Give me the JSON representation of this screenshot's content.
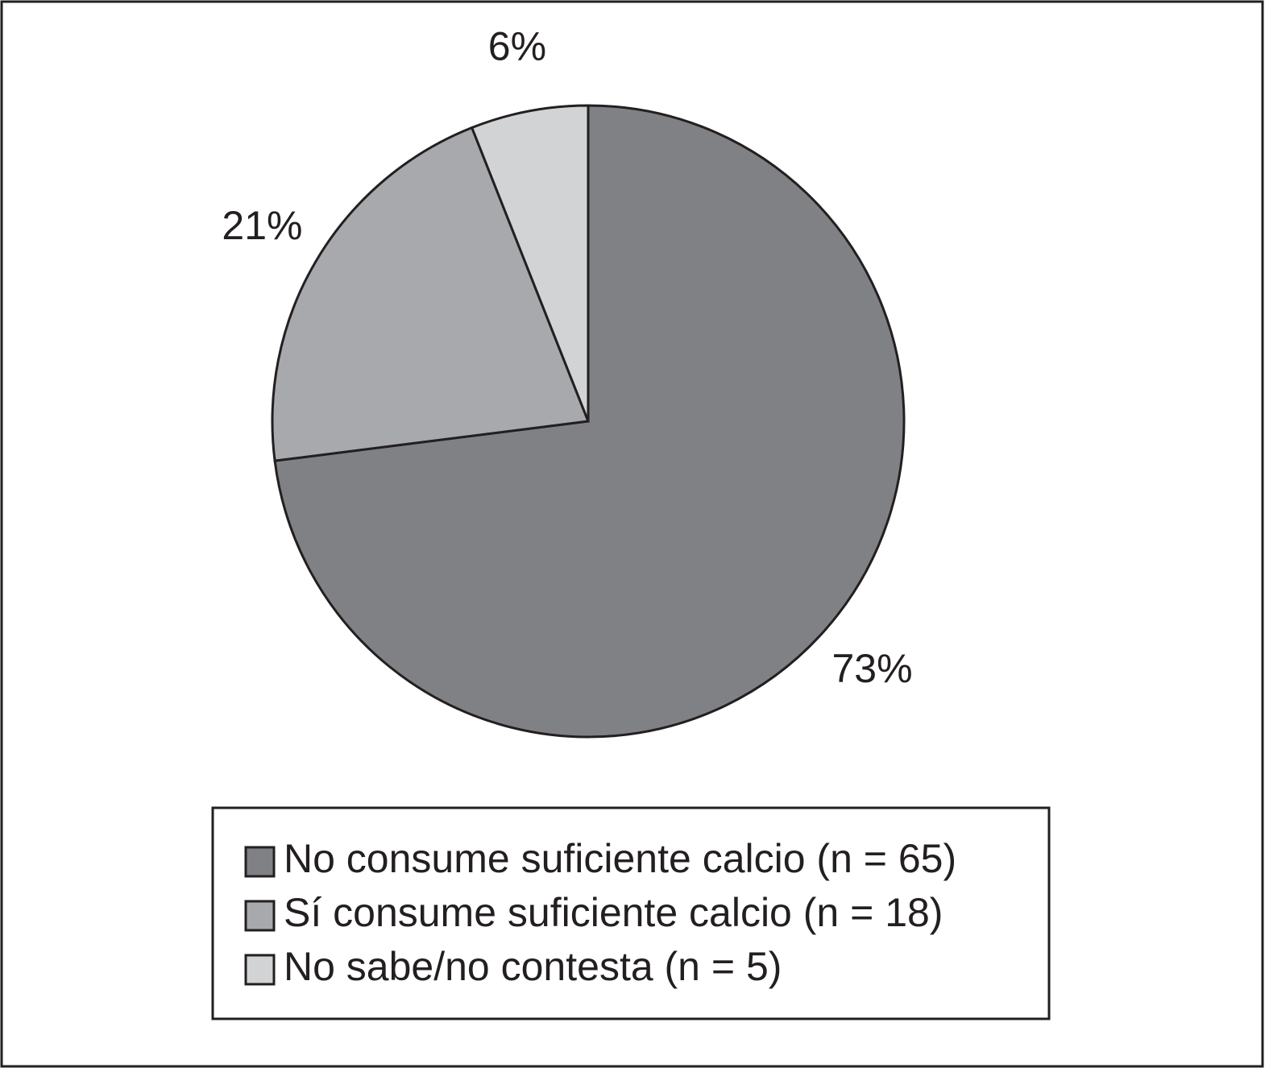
{
  "chart_data": {
    "type": "pie",
    "categories": [
      "No consume suficiente calcio (n = 65)",
      "Sí consume suficiente calcio (n = 18)",
      "No sabe/no contesta (n = 5)"
    ],
    "values": [
      73,
      21,
      6
    ],
    "value_labels": [
      "73%",
      "21%",
      "6%"
    ],
    "colors": [
      "#808184",
      "#a7a9ac",
      "#d1d3d4"
    ],
    "legend": "bottom"
  }
}
